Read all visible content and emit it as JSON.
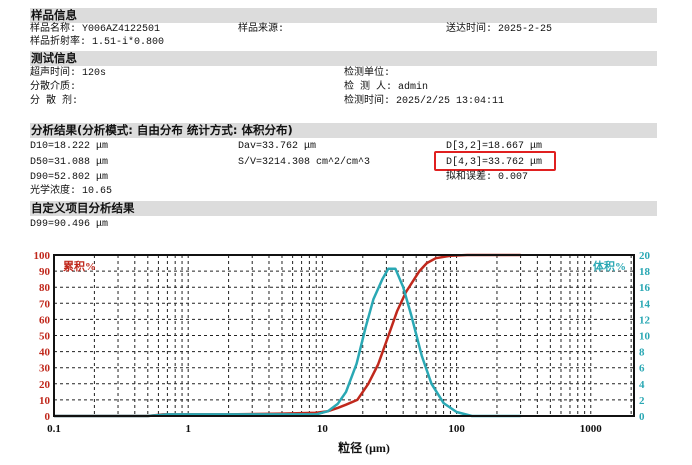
{
  "sample": {
    "header": "样品信息",
    "name": "样品名称: Y006AZ4122501",
    "source": "样品来源:",
    "sent": "送达时间: 2025-2-25",
    "refr": "样品折射率: 1.51-i*0.800"
  },
  "test": {
    "header": "测试信息",
    "ultra": "超声时间: 120s",
    "medium": "分散介质:",
    "agent": "分 散 剂:",
    "unit": "检测单位:",
    "person": "检 测 人: admin",
    "time": "检测时间: 2025/2/25 13:04:11"
  },
  "results": {
    "header": "分析结果(分析模式: 自由分布   统计方式: 体积分布)",
    "d10": "D10=18.222 μm",
    "d50": "D50=31.088 μm",
    "d90": "D90=52.802 μm",
    "optical": "光学浓度: 10.65",
    "dav": "Dav=33.762 μm",
    "sv": "S/V=3214.308 cm^2/cm^3",
    "d32": "D[3,2]=18.667 μm",
    "d43": "D[4,3]=33.762 μm",
    "fit": "拟和误差: 0.007"
  },
  "custom": {
    "header": "自定义项目分析结果",
    "d99": "D99=90.496 μm"
  },
  "chart_data": {
    "type": "line",
    "xlabel": "粒径 (μm)",
    "xscale": "log",
    "xlim": [
      0.1,
      2100
    ],
    "xticks": [
      "0.1",
      "1",
      "10",
      "100",
      "1000"
    ],
    "y_left": {
      "label": "累积%",
      "lim": [
        0,
        100
      ],
      "ticks": [
        "0",
        "10",
        "20",
        "30",
        "40",
        "50",
        "60",
        "70",
        "80",
        "90",
        "100"
      ],
      "color": "#c0281c"
    },
    "y_right": {
      "label": "体积%",
      "lim": [
        0,
        20
      ],
      "ticks": [
        "0",
        "2",
        "4",
        "6",
        "8",
        "10",
        "12",
        "14",
        "16",
        "18",
        "20"
      ],
      "color": "#2aa8b4"
    },
    "grid": true,
    "series": [
      {
        "name": "累积%",
        "axis": "left",
        "color": "#c0281c",
        "x": [
          0.1,
          0.5,
          0.65,
          1,
          2,
          5,
          9,
          11,
          13,
          15,
          18.2,
          22,
          26,
          31.1,
          36,
          42,
          52.8,
          60,
          70,
          90,
          120,
          300
        ],
        "y": [
          0,
          0,
          1,
          1,
          1,
          1.5,
          2,
          3,
          5,
          7,
          10,
          20,
          32,
          50,
          65,
          77,
          90,
          95,
          98,
          99.5,
          100,
          100
        ]
      },
      {
        "name": "体积%",
        "axis": "right",
        "color": "#2aa8b4",
        "x": [
          0.1,
          0.5,
          0.7,
          1,
          2,
          5,
          9,
          11,
          13,
          15,
          18,
          21,
          24,
          28,
          31,
          35,
          40,
          46,
          55,
          65,
          80,
          100,
          130,
          300
        ],
        "y": [
          0,
          0,
          0.2,
          0.2,
          0.2,
          0.2,
          0.2,
          0.6,
          1.5,
          3,
          6.5,
          11,
          14.5,
          17,
          18.3,
          18.3,
          16,
          12.5,
          7.5,
          4,
          1.6,
          0.5,
          0,
          0
        ]
      }
    ]
  }
}
